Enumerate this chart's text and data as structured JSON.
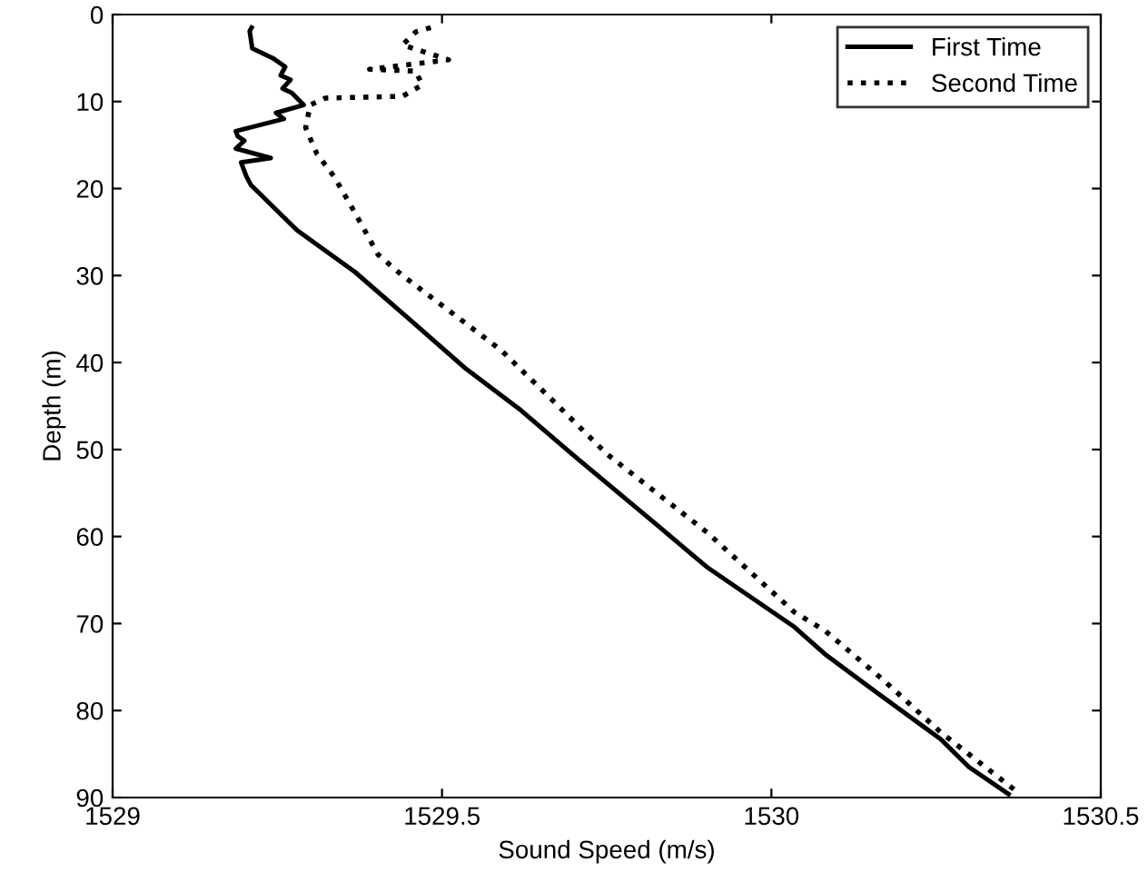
{
  "chart_data": {
    "type": "line",
    "xlabel": "Sound Speed (m/s)",
    "ylabel": "Depth (m)",
    "xlim": [
      1529,
      1530.5
    ],
    "xticks": [
      1529,
      1529.5,
      1530,
      1530.5
    ],
    "ylim": [
      90,
      0
    ],
    "yticks": [
      0,
      10,
      20,
      30,
      40,
      50,
      60,
      70,
      80,
      90
    ],
    "grid": false,
    "legend": "top right",
    "marker": "none",
    "series": [
      {
        "name": "First Time",
        "color": "#000000",
        "line_style": "solid",
        "x": [
          1529.211,
          1529.208,
          1529.212,
          1529.243,
          1529.262,
          1529.255,
          1529.27,
          1529.258,
          1529.272,
          1529.29,
          1529.248,
          1529.26,
          1529.187,
          1529.19,
          1529.2,
          1529.187,
          1529.24,
          1529.195,
          1529.203,
          1529.21,
          1529.28,
          1529.368,
          1529.45,
          1529.536,
          1529.62,
          1529.697,
          1529.83,
          1529.902,
          1530.035,
          1530.081,
          1530.17,
          1530.257,
          1530.3,
          1530.36
        ],
        "values": [
          1.5,
          1.9,
          3.9,
          5,
          6,
          7,
          7.5,
          8.5,
          9,
          10.4,
          11.3,
          12,
          13.4,
          14,
          14.5,
          15.4,
          16.5,
          17,
          18.6,
          19.6,
          24.8,
          29.6,
          35,
          40.7,
          45.5,
          50.5,
          58.9,
          63.5,
          70.4,
          73.5,
          78.5,
          83.3,
          86.5,
          89.6
        ]
      },
      {
        "name": "Second Time",
        "color": "#000000",
        "line_style": "dotted",
        "x": [
          1529.483,
          1529.46,
          1529.44,
          1529.51,
          1529.39,
          1529.46,
          1529.47,
          1529.44,
          1529.323,
          1529.3,
          1529.293,
          1529.31,
          1529.336,
          1529.368,
          1529.403,
          1529.44,
          1529.51,
          1529.59,
          1529.67,
          1529.75,
          1529.902,
          1530.035,
          1530.081,
          1530.17,
          1530.257,
          1530.369
        ],
        "values": [
          1.5,
          2,
          3.5,
          5.2,
          6.3,
          6.5,
          8.1,
          9.4,
          9.6,
          10.4,
          13,
          16,
          18.6,
          22.8,
          27.6,
          30,
          34,
          38.6,
          44.5,
          50.5,
          59.5,
          68.7,
          70.8,
          76.5,
          82.5,
          89.1
        ]
      }
    ]
  }
}
